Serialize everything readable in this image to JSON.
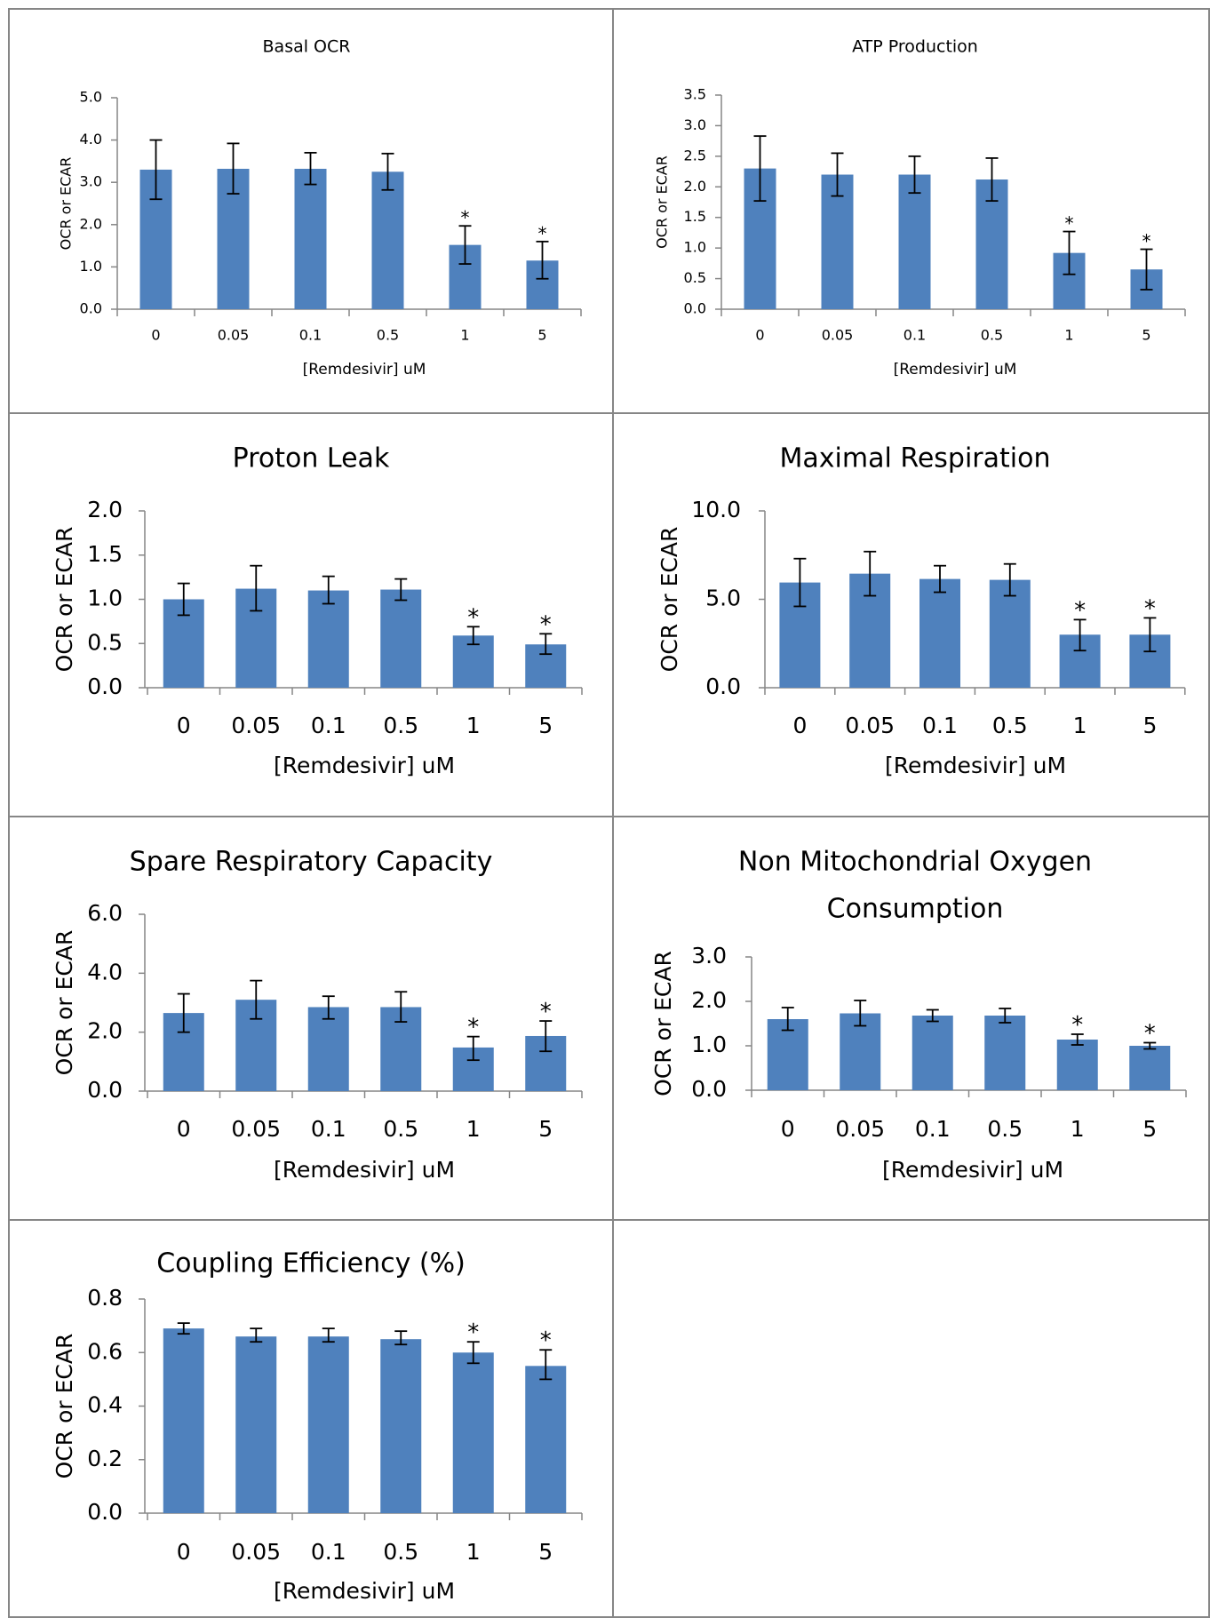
{
  "figure": {
    "category_label": "[Remdesivir] uM",
    "y_axis_label": "OCR or ECAR"
  },
  "colors": {
    "bar": "#4f81bd",
    "error_bar": "#000000",
    "axis": "#868686",
    "grid_border": "#868686"
  },
  "chart_data": [
    {
      "type": "bar",
      "title": "Basal OCR",
      "xlabel": "[Remdesivir] uM",
      "ylabel": "OCR or ECAR",
      "categories": [
        "0",
        "0.05",
        "0.1",
        "0.5",
        "1",
        "5"
      ],
      "values": [
        3.3,
        3.32,
        3.32,
        3.25,
        1.52,
        1.15
      ],
      "error_low": [
        2.6,
        2.73,
        2.95,
        2.82,
        1.07,
        0.72
      ],
      "error_high": [
        4.0,
        3.92,
        3.7,
        3.68,
        1.97,
        1.6
      ],
      "significance": [
        "",
        "",
        "",
        "",
        "*",
        "*"
      ],
      "ylim": [
        0,
        5.0
      ],
      "yticks": [
        "0.0",
        "1.0",
        "2.0",
        "3.0",
        "4.0",
        "5.0"
      ]
    },
    {
      "type": "bar",
      "title": "ATP Production",
      "xlabel": "[Remdesivir] uM",
      "ylabel": "OCR or ECAR",
      "categories": [
        "0",
        "0.05",
        "0.1",
        "0.5",
        "1",
        "5"
      ],
      "values": [
        2.3,
        2.2,
        2.2,
        2.12,
        0.92,
        0.65
      ],
      "error_low": [
        1.77,
        1.85,
        1.9,
        1.77,
        0.57,
        0.32
      ],
      "error_high": [
        2.83,
        2.55,
        2.5,
        2.47,
        1.27,
        0.98
      ],
      "significance": [
        "",
        "",
        "",
        "",
        "*",
        "*"
      ],
      "ylim": [
        0,
        3.5
      ],
      "yticks": [
        "0.0",
        "0.5",
        "1.0",
        "1.5",
        "2.0",
        "2.5",
        "3.0",
        "3.5"
      ]
    },
    {
      "type": "bar",
      "title": "Proton Leak",
      "xlabel": "[Remdesivir] uM",
      "ylabel": "OCR or ECAR",
      "categories": [
        "0",
        "0.05",
        "0.1",
        "0.5",
        "1",
        "5"
      ],
      "values": [
        1.0,
        1.12,
        1.1,
        1.11,
        0.59,
        0.49
      ],
      "error_low": [
        0.82,
        0.87,
        0.95,
        0.99,
        0.49,
        0.38
      ],
      "error_high": [
        1.18,
        1.38,
        1.26,
        1.23,
        0.69,
        0.61
      ],
      "significance": [
        "",
        "",
        "",
        "",
        "*",
        "*"
      ],
      "ylim": [
        0,
        2.0
      ],
      "yticks": [
        "0.0",
        "0.5",
        "1.0",
        "1.5",
        "2.0"
      ]
    },
    {
      "type": "bar",
      "title": "Maximal Respiration",
      "xlabel": "[Remdesivir] uM",
      "ylabel": "OCR or ECAR",
      "categories": [
        "0",
        "0.05",
        "0.1",
        "0.5",
        "1",
        "5"
      ],
      "values": [
        5.95,
        6.45,
        6.15,
        6.1,
        3.0,
        3.0
      ],
      "error_low": [
        4.6,
        5.2,
        5.4,
        5.2,
        2.1,
        2.05
      ],
      "error_high": [
        7.3,
        7.7,
        6.9,
        7.0,
        3.85,
        3.95
      ],
      "significance": [
        "",
        "",
        "",
        "",
        "*",
        "*"
      ],
      "ylim": [
        0,
        10.0
      ],
      "yticks": [
        "0.0",
        "5.0",
        "10.0"
      ]
    },
    {
      "type": "bar",
      "title": "Spare Respiratory Capacity",
      "xlabel": "[Remdesivir] uM",
      "ylabel": "OCR or ECAR",
      "categories": [
        "0",
        "0.05",
        "0.1",
        "0.5",
        "1",
        "5"
      ],
      "values": [
        2.65,
        3.1,
        2.85,
        2.85,
        1.48,
        1.87
      ],
      "error_low": [
        2.0,
        2.45,
        2.45,
        2.35,
        1.05,
        1.35
      ],
      "error_high": [
        3.3,
        3.75,
        3.22,
        3.37,
        1.85,
        2.38
      ],
      "significance": [
        "",
        "",
        "",
        "",
        "*",
        "*"
      ],
      "ylim": [
        0,
        6.0
      ],
      "yticks": [
        "0.0",
        "2.0",
        "4.0",
        "6.0"
      ]
    },
    {
      "type": "bar",
      "title": "Non Mitochondrial Oxygen Consumption",
      "xlabel": "[Remdesivir] uM",
      "ylabel": "OCR or ECAR",
      "categories": [
        "0",
        "0.05",
        "0.1",
        "0.5",
        "1",
        "5"
      ],
      "values": [
        1.6,
        1.73,
        1.68,
        1.68,
        1.14,
        1.0
      ],
      "error_low": [
        1.35,
        1.45,
        1.55,
        1.52,
        1.02,
        0.93
      ],
      "error_high": [
        1.86,
        2.02,
        1.81,
        1.84,
        1.26,
        1.07
      ],
      "significance": [
        "",
        "",
        "",
        "",
        "*",
        "*"
      ],
      "ylim": [
        0,
        3.0
      ],
      "yticks": [
        "0.0",
        "1.0",
        "2.0",
        "3.0"
      ]
    },
    {
      "type": "bar",
      "title": "Coupling Efficiency (%)",
      "xlabel": "[Remdesivir] uM",
      "ylabel": "OCR or ECAR",
      "categories": [
        "0",
        "0.05",
        "0.1",
        "0.5",
        "1",
        "5"
      ],
      "values": [
        0.69,
        0.66,
        0.66,
        0.65,
        0.6,
        0.55
      ],
      "error_low": [
        0.67,
        0.64,
        0.64,
        0.63,
        0.56,
        0.5
      ],
      "error_high": [
        0.71,
        0.69,
        0.69,
        0.68,
        0.64,
        0.61
      ],
      "significance": [
        "",
        "",
        "",
        "",
        "*",
        "*"
      ],
      "ylim": [
        0,
        0.8
      ],
      "yticks": [
        "0.0",
        "0.2",
        "0.4",
        "0.6",
        "0.8"
      ]
    }
  ]
}
